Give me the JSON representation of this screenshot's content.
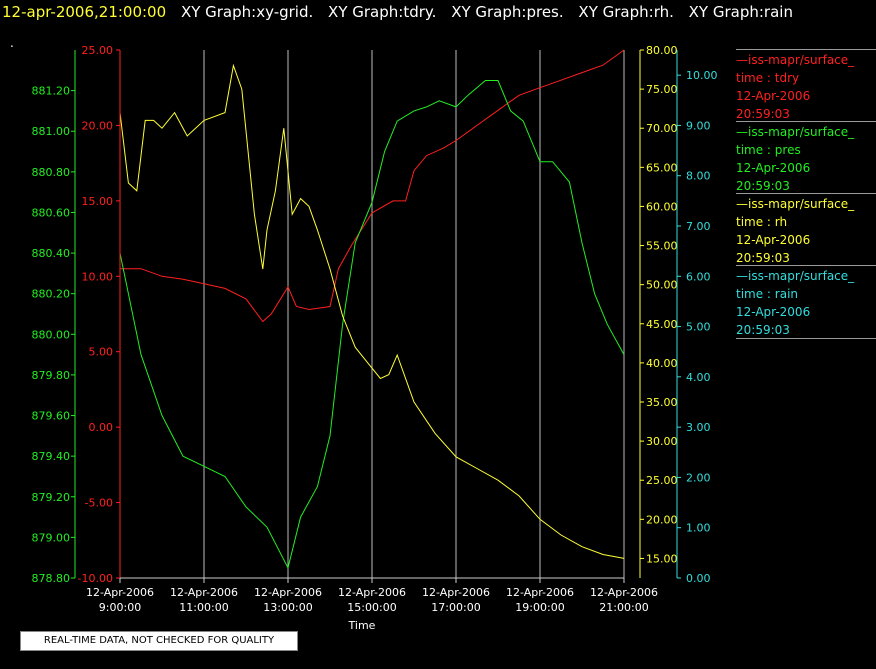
{
  "header": {
    "timestamp": "12-apr-2006,21:00:00",
    "graphs": [
      "XY Graph:xy-grid.",
      "XY Graph:tdry.",
      "XY Graph:pres.",
      "XY Graph:rh.",
      "XY Graph:rain"
    ]
  },
  "dot_text": ".",
  "disclaimer": "REAL-TIME DATA, NOT CHECKED FOR QUALITY",
  "colors": {
    "tdry": "#ff2020",
    "pres": "#22ee22",
    "rh": "#ffff33",
    "rain": "#33dddd",
    "grid": "#bbbbbb"
  },
  "legend": [
    {
      "name": "—iss-mapr/surface_",
      "label": "time : tdry",
      "date": "12-Apr-2006",
      "time": "20:59:03",
      "color": "#ff2020"
    },
    {
      "name": "—iss-mapr/surface_",
      "label": "time : pres",
      "date": "12-Apr-2006",
      "time": "20:59:03",
      "color": "#22ee22"
    },
    {
      "name": "—iss-mapr/surface_",
      "label": "time : rh",
      "date": "12-Apr-2006",
      "time": "20:59:03",
      "color": "#ffff33"
    },
    {
      "name": "—iss-mapr/surface_",
      "label": "time : rain",
      "date": "12-Apr-2006",
      "time": "20:59:03",
      "color": "#33dddd"
    }
  ],
  "chart_data": {
    "type": "line",
    "xlabel": "Time",
    "xlim": [
      9,
      21
    ],
    "x_ticks": [
      {
        "date": "12-Apr-2006",
        "time": "9:00:00"
      },
      {
        "date": "12-Apr-2006",
        "time": "11:00:00"
      },
      {
        "date": "12-Apr-2006",
        "time": "13:00:00"
      },
      {
        "date": "12-Apr-2006",
        "time": "15:00:00"
      },
      {
        "date": "12-Apr-2006",
        "time": "17:00:00"
      },
      {
        "date": "12-Apr-2006",
        "time": "19:00:00"
      },
      {
        "date": "12-Apr-2006",
        "time": "21:00:00"
      }
    ],
    "grid": true,
    "axes": {
      "tdry": {
        "ylim": [
          -10,
          25
        ],
        "ticks": [
          "-10.00",
          "-5.00",
          "0.00",
          "5.00",
          "10.00",
          "15.00",
          "20.00",
          "25.00"
        ]
      },
      "pres": {
        "ylim": [
          878.8,
          881.4
        ],
        "ticks": [
          "878.80",
          "879.00",
          "879.20",
          "879.40",
          "879.60",
          "879.80",
          "880.00",
          "880.20",
          "880.40",
          "880.60",
          "880.80",
          "881.00",
          "881.20"
        ]
      },
      "rh": {
        "ylim": [
          12.5,
          80
        ],
        "ticks": [
          "15.00",
          "20.00",
          "25.00",
          "30.00",
          "35.00",
          "40.00",
          "45.00",
          "50.00",
          "55.00",
          "60.00",
          "65.00",
          "70.00",
          "75.00",
          "80.00"
        ]
      },
      "rain": {
        "ylim": [
          0,
          10.5
        ],
        "ticks": [
          "0.00",
          "1.00",
          "2.00",
          "3.00",
          "4.00",
          "5.00",
          "6.00",
          "7.00",
          "8.00",
          "9.00",
          "10.00"
        ]
      }
    },
    "series": [
      {
        "key": "tdry",
        "axis": "tdry",
        "x": [
          9.0,
          9.5,
          10.0,
          10.5,
          11.0,
          11.5,
          12.0,
          12.4,
          12.6,
          13.0,
          13.2,
          13.5,
          14.0,
          14.2,
          14.5,
          15.0,
          15.5,
          15.8,
          16.0,
          16.3,
          16.7,
          17.0,
          17.5,
          18.0,
          18.5,
          19.0,
          19.5,
          20.0,
          20.5,
          21.0
        ],
        "values": [
          10.5,
          10.5,
          10.0,
          9.8,
          9.5,
          9.2,
          8.5,
          7.0,
          7.5,
          9.3,
          8.0,
          7.8,
          8.0,
          10.5,
          12.0,
          14.2,
          15.0,
          15.0,
          17.0,
          18.0,
          18.5,
          19.0,
          20.0,
          21.0,
          22.0,
          22.5,
          23.0,
          23.5,
          24.0,
          25.0
        ]
      },
      {
        "key": "pres",
        "axis": "pres",
        "x": [
          9.0,
          9.2,
          9.5,
          10.0,
          10.5,
          11.0,
          11.5,
          12.0,
          12.5,
          13.0,
          13.3,
          13.7,
          14.0,
          14.3,
          14.6,
          15.0,
          15.3,
          15.6,
          16.0,
          16.3,
          16.6,
          17.0,
          17.3,
          17.7,
          18.0,
          18.3,
          18.6,
          19.0,
          19.3,
          19.7,
          20.0,
          20.3,
          20.6,
          21.0
        ],
        "values": [
          880.4,
          880.2,
          879.9,
          879.6,
          879.4,
          879.35,
          879.3,
          879.15,
          879.05,
          878.85,
          879.1,
          879.25,
          879.5,
          880.05,
          880.45,
          880.65,
          880.9,
          881.05,
          881.1,
          881.12,
          881.15,
          881.12,
          881.18,
          881.25,
          881.25,
          881.1,
          881.05,
          880.85,
          880.85,
          880.75,
          880.45,
          880.2,
          880.05,
          879.9
        ]
      },
      {
        "key": "rh",
        "axis": "rh",
        "x": [
          9.0,
          9.2,
          9.4,
          9.6,
          9.8,
          10.0,
          10.3,
          10.6,
          11.0,
          11.5,
          11.7,
          11.9,
          12.2,
          12.4,
          12.5,
          12.7,
          12.9,
          13.1,
          13.3,
          13.5,
          13.7,
          14.0,
          14.3,
          14.6,
          14.9,
          15.2,
          15.4,
          15.6,
          16.0,
          16.5,
          17.0,
          17.5,
          18.0,
          18.5,
          19.0,
          19.5,
          20.0,
          20.5,
          21.0
        ],
        "values": [
          72,
          63,
          62,
          71,
          71,
          70,
          72,
          69,
          71,
          72,
          78,
          75,
          59,
          52,
          57,
          62,
          70,
          59,
          61,
          60,
          57,
          52,
          46,
          42,
          40,
          38,
          38.5,
          41,
          35,
          31,
          28,
          26.5,
          25,
          23,
          20,
          18,
          16.5,
          15.5,
          15
        ]
      },
      {
        "key": "rain",
        "axis": "rain",
        "x": [
          9.0,
          21.0
        ],
        "values": [
          0.0,
          0.0
        ]
      }
    ]
  }
}
